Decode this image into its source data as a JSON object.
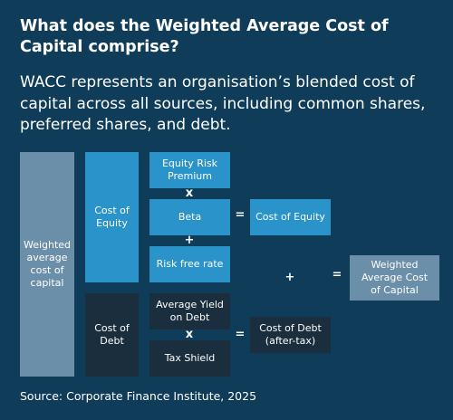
{
  "heading": "What does the Weighted Average Cost of Capital comprise?",
  "intro": "WACC represents an organisation’s blended cost of capital across all sources, including common shares, preferred shares, and debt.",
  "diagram": {
    "wacc_box": "Weighted average cost of capital",
    "cost_of_equity": "Cost of Equity",
    "cost_of_debt": "Cost of Debt",
    "equity_risk_premium": "Equity Risk Premium",
    "beta": "Beta",
    "risk_free_rate": "Risk free rate",
    "average_yield_on_debt": "Average Yield on Debt",
    "tax_shield": "Tax Shield",
    "cost_of_equity_result": "Cost of Equity",
    "cost_of_debt_after_tax": "Cost of Debt (after-tax)",
    "wacc_result": "Weighted Average Cost of Capital",
    "op_times": "x",
    "op_plus": "+",
    "op_equals": "="
  },
  "source": "Source: Corporate Finance Institute, 2025",
  "colors": {
    "background": "#0f3c58",
    "grey": "#6b8fa8",
    "blue": "#2a93c9",
    "dark": "#1a2e3d"
  }
}
